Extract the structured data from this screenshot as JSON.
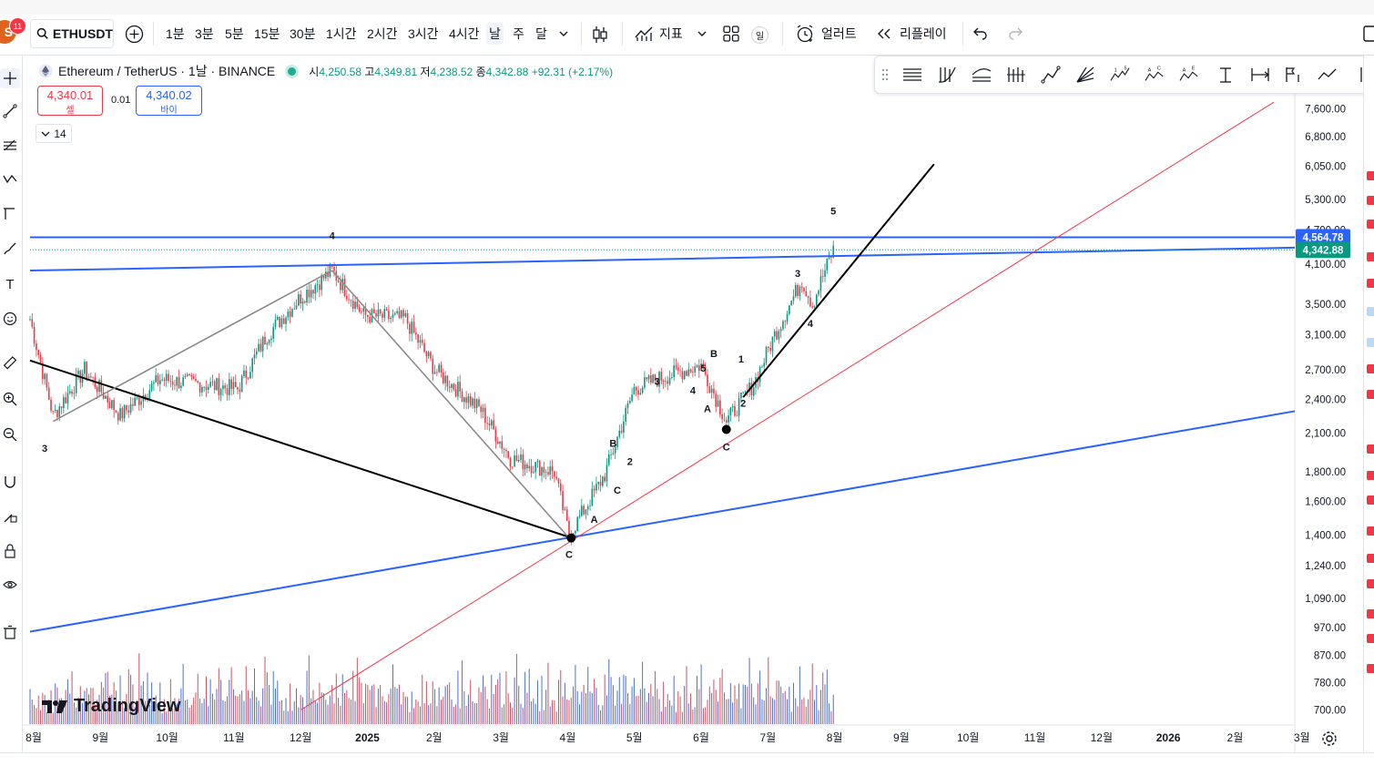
{
  "toolbar": {
    "avatar_letter": "S",
    "notification_count": "11",
    "symbol": "ETHUSDT",
    "intervals": [
      "1분",
      "3분",
      "5분",
      "15분",
      "30분",
      "1시간",
      "2시간",
      "3시간",
      "4시간",
      "날",
      "주",
      "달"
    ],
    "active_interval": "날",
    "indicators_label": "지표",
    "layout_badge": "일",
    "alert_label": "얼러트",
    "replay_label": "리플레이"
  },
  "legend": {
    "title": "Ethereum / TetherUS · 1날 · BINANCE",
    "o_label": "시",
    "o_value": "4,250.58",
    "h_label": "고",
    "h_value": "4,349.81",
    "l_label": "저",
    "l_value": "4,238.52",
    "c_label": "종",
    "c_value": "4,342.88",
    "change": "+92.31 (+2.17%)"
  },
  "trade": {
    "sell_price": "4,340.01",
    "sell_label": "셀",
    "spread": "0.01",
    "buy_price": "4,340.02",
    "buy_label": "바이"
  },
  "indicators_collapsed_count": "14",
  "branding": {
    "logo_text": "TradingView"
  },
  "colors": {
    "up": "#089981",
    "down": "#f23645",
    "accent": "#2962ff",
    "trend_blue": "#2962ff",
    "trend_red": "#f23645",
    "trend_black": "#000000",
    "wave_gray": "#8a8a8a"
  },
  "icons": {
    "left_toolbar": [
      "crosshair-icon",
      "trend-line-icon",
      "fib-retracement-icon",
      "pattern-icon",
      "projection-icon",
      "brush-icon",
      "text-icon",
      "emoji-icon",
      "ruler-icon",
      "zoom-in-icon",
      "zoom-out-icon",
      "magnet-icon",
      "lock-drawing-icon",
      "lock-icon",
      "eye-icon",
      "trash-icon"
    ],
    "drawing_bar": [
      "horizontal-lines-icon",
      "candles-icon",
      "curves-icon",
      "bars-icon",
      "zigzag-icon",
      "fan-icon",
      "wave-15-icon",
      "wave-ac-icon",
      "wave-ae-icon",
      "text-line-icon",
      "range-icon",
      "flag-icon",
      "path-icon"
    ]
  },
  "chart_data": {
    "type": "candlestick",
    "scale": "log",
    "price_axis_ticks": [
      "7,600.00",
      "6,800.00",
      "6,050.00",
      "5,300.00",
      "4,700.00",
      "4,100.00",
      "3,500.00",
      "3,100.00",
      "2,700.00",
      "2,400.00",
      "2,100.00",
      "1,800.00",
      "1,600.00",
      "1,400.00",
      "1,240.00",
      "1,090.00",
      "970.00",
      "870.00",
      "780.00",
      "700.00"
    ],
    "time_axis_ticks": [
      "8월",
      "9월",
      "10월",
      "11월",
      "12월",
      "2025",
      "2월",
      "3월",
      "4월",
      "5월",
      "6월",
      "7월",
      "8월",
      "9월",
      "10월",
      "11월",
      "12월",
      "2026",
      "2월",
      "3월"
    ],
    "price_labels": [
      {
        "value": "4,564.78",
        "color": "#2962ff"
      },
      {
        "value": "4,342.88",
        "color": "#089981"
      }
    ],
    "ylim": [
      650,
      8300
    ],
    "path_points": [
      {
        "t": "2024-07-25",
        "p": 3300
      },
      {
        "t": "2024-08-05",
        "p": 2250
      },
      {
        "t": "2024-08-20",
        "p": 2700
      },
      {
        "t": "2024-09-06",
        "p": 2250
      },
      {
        "t": "2024-09-25",
        "p": 2600
      },
      {
        "t": "2024-10-15",
        "p": 2550
      },
      {
        "t": "2024-11-01",
        "p": 2500
      },
      {
        "t": "2024-11-15",
        "p": 3100
      },
      {
        "t": "2024-12-01",
        "p": 3600
      },
      {
        "t": "2024-12-16",
        "p": 4000
      },
      {
        "t": "2024-12-31",
        "p": 3350
      },
      {
        "t": "2025-01-20",
        "p": 3300
      },
      {
        "t": "2025-02-03",
        "p": 2700
      },
      {
        "t": "2025-02-25",
        "p": 2300
      },
      {
        "t": "2025-03-11",
        "p": 1900
      },
      {
        "t": "2025-04-01",
        "p": 1800
      },
      {
        "t": "2025-04-08",
        "p": 1400
      },
      {
        "t": "2025-04-25",
        "p": 1780
      },
      {
        "t": "2025-05-09",
        "p": 2500
      },
      {
        "t": "2025-05-20",
        "p": 2600
      },
      {
        "t": "2025-06-10",
        "p": 2750
      },
      {
        "t": "2025-06-22",
        "p": 2200
      },
      {
        "t": "2025-07-05",
        "p": 2550
      },
      {
        "t": "2025-07-15",
        "p": 3100
      },
      {
        "t": "2025-07-28",
        "p": 3850
      },
      {
        "t": "2025-08-02",
        "p": 3500
      },
      {
        "t": "2025-08-08",
        "p": 4000
      },
      {
        "t": "2025-08-12",
        "p": 4342.88
      }
    ],
    "wave_labels": [
      {
        "text": "3",
        "t": "2024-08-01",
        "p": 1950
      },
      {
        "text": "4",
        "t": "2024-12-16",
        "p": 4530
      },
      {
        "text": "C",
        "t": "2025-04-08",
        "p": 1280
      },
      {
        "text": "A",
        "t": "2025-04-20",
        "p": 1470
      },
      {
        "text": "B",
        "t": "2025-04-29",
        "p": 1990
      },
      {
        "text": "2",
        "t": "2025-05-07",
        "p": 1850
      },
      {
        "text": "C",
        "t": "2025-05-01",
        "p": 1650
      },
      {
        "text": "3",
        "t": "2025-05-20",
        "p": 2540
      },
      {
        "text": "5",
        "t": "2025-06-11",
        "p": 2680
      },
      {
        "text": "B",
        "t": "2025-06-16",
        "p": 2840
      },
      {
        "text": "4",
        "t": "2025-06-06",
        "p": 2450
      },
      {
        "text": "A",
        "t": "2025-06-13",
        "p": 2280
      },
      {
        "text": "C",
        "t": "2025-06-22",
        "p": 1960
      },
      {
        "text": "1",
        "t": "2025-06-29",
        "p": 2780
      },
      {
        "text": "2",
        "t": "2025-06-30",
        "p": 2330
      },
      {
        "text": "3",
        "t": "2025-07-26",
        "p": 3900
      },
      {
        "text": "4",
        "t": "2025-08-01",
        "p": 3200
      },
      {
        "text": "5",
        "t": "2025-08-12",
        "p": 5000
      }
    ],
    "pivots": [
      {
        "t": "2025-04-09",
        "p": 1385
      },
      {
        "t": "2025-06-22",
        "p": 2130
      }
    ],
    "trend_lines": [
      {
        "name": "blue-upper",
        "color": "#2962ff",
        "from": {
          "t": "2024-07-25",
          "p": 4000
        },
        "to": {
          "t": "2026-03-20",
          "p": 4380
        }
      },
      {
        "name": "blue-horizontal",
        "color": "#2962ff",
        "from": {
          "t": "2024-07-25",
          "p": 4564.78
        },
        "to": {
          "t": "2026-03-20",
          "p": 4564.78
        }
      },
      {
        "name": "blue-lower",
        "color": "#2962ff",
        "from": {
          "t": "2024-07-25",
          "p": 955
        },
        "to": {
          "t": "2026-03-20",
          "p": 2290
        }
      },
      {
        "name": "red-support",
        "color": "#f23645",
        "from": {
          "t": "2024-12-01",
          "p": 700
        },
        "to": {
          "t": "2026-03-10",
          "p": 7800
        }
      },
      {
        "name": "black-down",
        "color": "#000000",
        "from": {
          "t": "2024-07-25",
          "p": 2800
        },
        "to": {
          "t": "2025-04-08",
          "p": 1390
        }
      },
      {
        "name": "black-up",
        "color": "#000000",
        "from": {
          "t": "2025-06-30",
          "p": 2420
        },
        "to": {
          "t": "2025-09-29",
          "p": 6100
        }
      },
      {
        "name": "gray-wave-1",
        "color": "#8a8a8a",
        "from": {
          "t": "2024-08-05",
          "p": 2200
        },
        "to": {
          "t": "2024-12-16",
          "p": 4000
        }
      },
      {
        "name": "gray-wave-2",
        "color": "#8a8a8a",
        "from": {
          "t": "2024-12-16",
          "p": 4000
        },
        "to": {
          "t": "2025-04-08",
          "p": 1385
        }
      }
    ],
    "volume_pattern": [
      4,
      3,
      5,
      2,
      6,
      3,
      4,
      7,
      3,
      5,
      4,
      3,
      6,
      8,
      4,
      5,
      3,
      4,
      6,
      5,
      7,
      4,
      3,
      5,
      6,
      4,
      8,
      5,
      4,
      6,
      7,
      5,
      3,
      4,
      6,
      5,
      9,
      6,
      5,
      4,
      7,
      6,
      5,
      8,
      6,
      4,
      5,
      7,
      6,
      5,
      4,
      6,
      8,
      7,
      5,
      4,
      6,
      5,
      7,
      4
    ]
  }
}
